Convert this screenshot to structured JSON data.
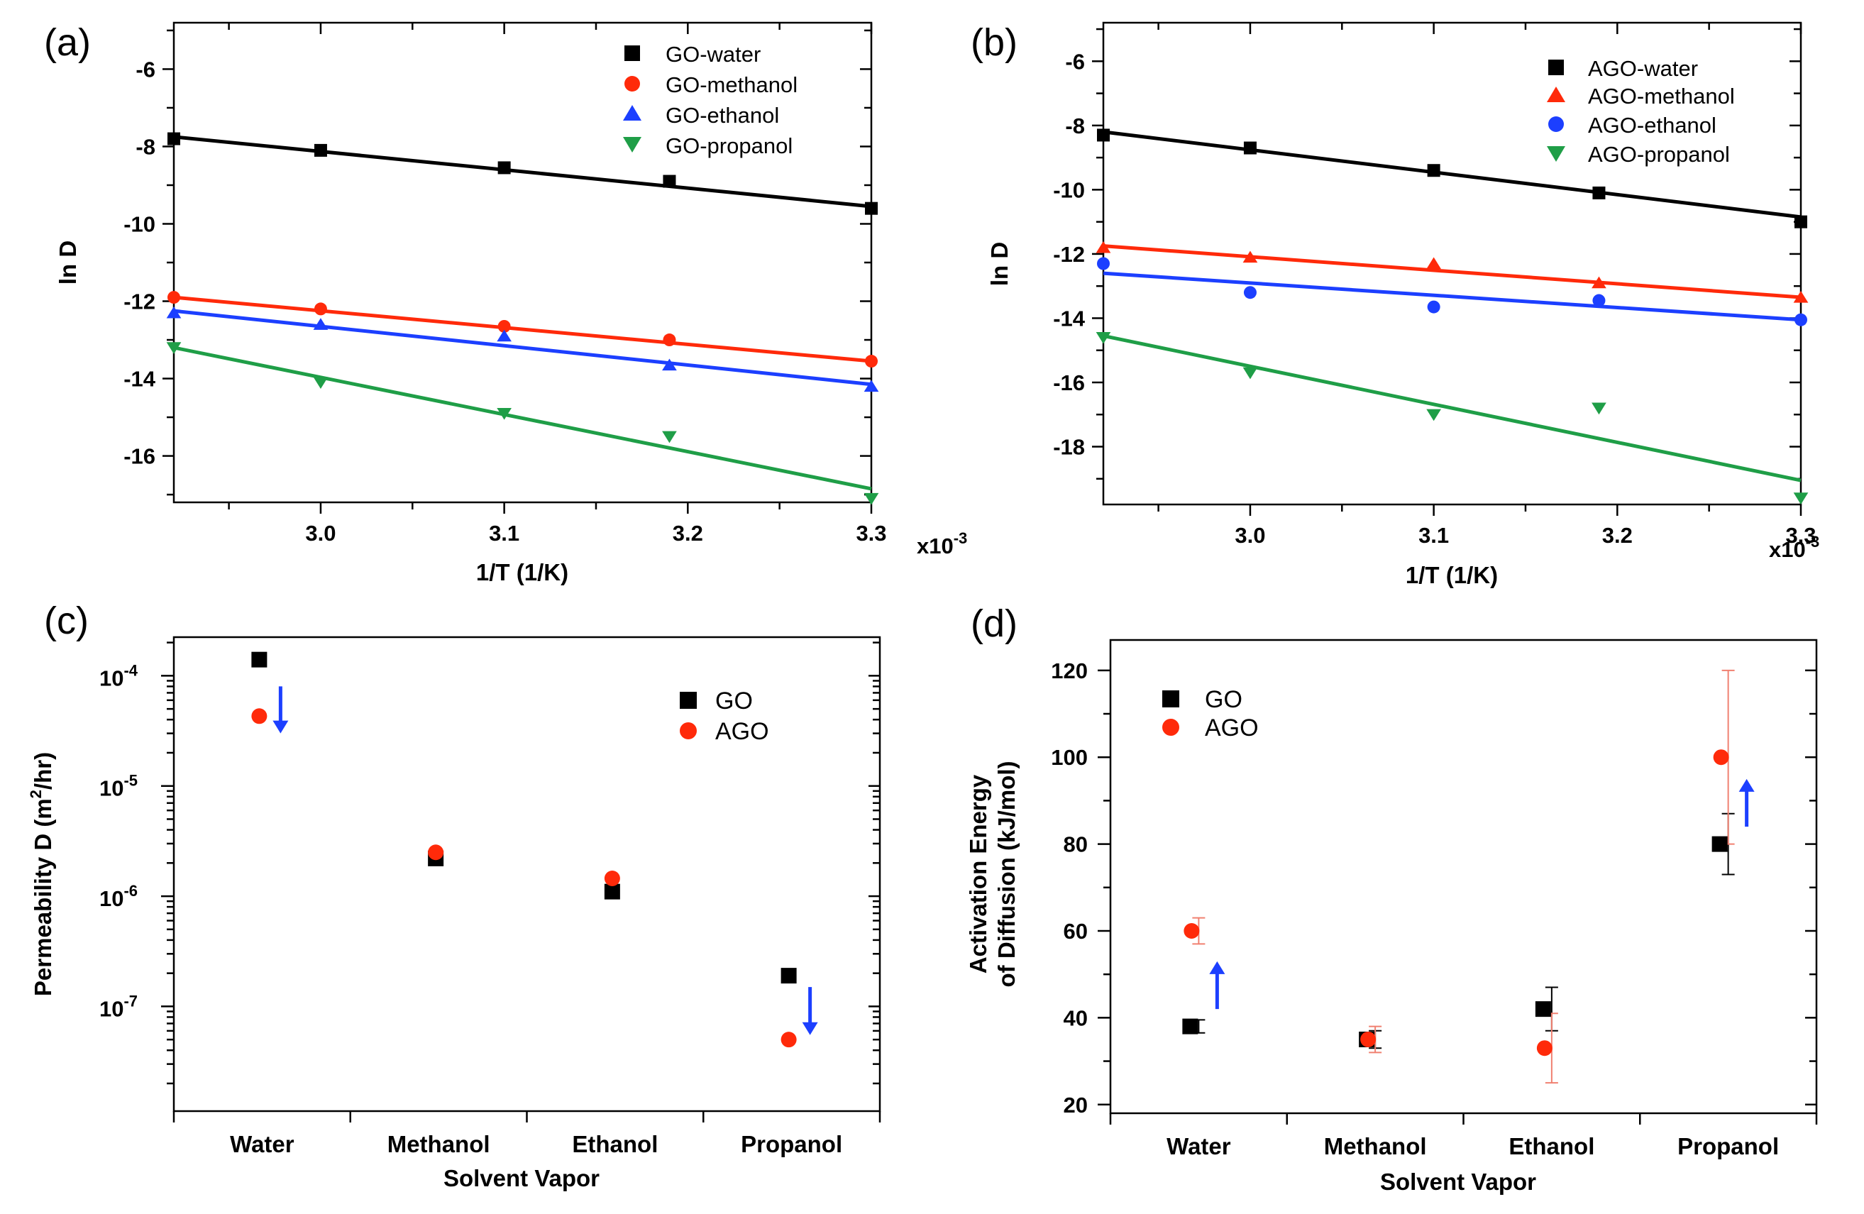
{
  "chart_data": [
    {
      "id": "a",
      "panel_label": "(a)",
      "type": "scatter",
      "xlabel": "1/T (1/K)",
      "ylabel": "ln D",
      "xlim": [
        2.92,
        3.3
      ],
      "ylim": [
        -17.2,
        -4.8
      ],
      "x_scale_label": "x10",
      "x_scale_exp": "-3",
      "x_ticks": [
        {
          "v": 3.0,
          "label": "3.0"
        },
        {
          "v": 3.1,
          "label": "3.1"
        },
        {
          "v": 3.2,
          "label": "3.2"
        },
        {
          "v": 3.3,
          "label": "3.3"
        }
      ],
      "y_ticks": [
        {
          "v": -6,
          "label": "-6"
        },
        {
          "v": -8,
          "label": "-8"
        },
        {
          "v": -10,
          "label": "-10"
        },
        {
          "v": -12,
          "label": "-12"
        },
        {
          "v": -14,
          "label": "-14"
        },
        {
          "v": -16,
          "label": "-16"
        }
      ],
      "legend_position": "top-right",
      "series": [
        {
          "name": "GO-water",
          "color": "#000000",
          "marker": "square",
          "x": [
            2.92,
            3.0,
            3.1,
            3.19,
            3.3
          ],
          "y": [
            -7.8,
            -8.1,
            -8.55,
            -8.9,
            -9.6
          ],
          "fit": [
            [
              2.92,
              -7.75
            ],
            [
              3.3,
              -9.55
            ]
          ]
        },
        {
          "name": "GO-methanol",
          "color": "#ff2a0a",
          "marker": "circle",
          "x": [
            2.92,
            3.0,
            3.1,
            3.19,
            3.3
          ],
          "y": [
            -11.9,
            -12.2,
            -12.65,
            -13.0,
            -13.55
          ],
          "fit": [
            [
              2.92,
              -11.9
            ],
            [
              3.3,
              -13.55
            ]
          ]
        },
        {
          "name": "GO-ethanol",
          "color": "#1c3fff",
          "marker": "triangle-up",
          "x": [
            2.92,
            3.0,
            3.1,
            3.19,
            3.3
          ],
          "y": [
            -12.3,
            -12.6,
            -12.9,
            -13.65,
            -14.2
          ],
          "fit": [
            [
              2.92,
              -12.25
            ],
            [
              3.3,
              -14.15
            ]
          ]
        },
        {
          "name": "GO-propanol",
          "color": "#1f9e47",
          "marker": "triangle-down",
          "x": [
            2.92,
            3.0,
            3.1,
            3.19,
            3.3
          ],
          "y": [
            -13.2,
            -14.1,
            -14.9,
            -15.5,
            -17.1
          ],
          "fit": [
            [
              2.92,
              -13.2
            ],
            [
              3.3,
              -16.85
            ]
          ]
        }
      ]
    },
    {
      "id": "b",
      "panel_label": "(b)",
      "type": "scatter",
      "xlabel": "1/T (1/K)",
      "ylabel": "ln D",
      "xlim": [
        2.92,
        3.3
      ],
      "ylim": [
        -19.8,
        -4.8
      ],
      "x_scale_label": "x10",
      "x_scale_exp": "-3",
      "x_ticks": [
        {
          "v": 3.0,
          "label": "3.0"
        },
        {
          "v": 3.1,
          "label": "3.1"
        },
        {
          "v": 3.2,
          "label": "3.2"
        },
        {
          "v": 3.3,
          "label": "3.3"
        }
      ],
      "y_ticks": [
        {
          "v": -6,
          "label": "-6"
        },
        {
          "v": -8,
          "label": "-8"
        },
        {
          "v": -10,
          "label": "-10"
        },
        {
          "v": -12,
          "label": "-12"
        },
        {
          "v": -14,
          "label": "-14"
        },
        {
          "v": -16,
          "label": "-16"
        },
        {
          "v": -18,
          "label": "-18"
        }
      ],
      "legend_position": "top-right",
      "series": [
        {
          "name": "AGO-water",
          "color": "#000000",
          "marker": "square",
          "x": [
            2.92,
            3.0,
            3.1,
            3.19,
            3.3
          ],
          "y": [
            -8.3,
            -8.7,
            -9.4,
            -10.1,
            -11.0
          ],
          "fit": [
            [
              2.92,
              -8.2
            ],
            [
              3.3,
              -10.85
            ]
          ]
        },
        {
          "name": "AGO-methanol",
          "color": "#ff2a0a",
          "marker": "triangle-up",
          "x": [
            2.92,
            3.0,
            3.1,
            3.19,
            3.3
          ],
          "y": [
            -11.8,
            -12.1,
            -12.3,
            -12.9,
            -13.35
          ],
          "fit": [
            [
              2.92,
              -11.75
            ],
            [
              3.3,
              -13.35
            ]
          ]
        },
        {
          "name": "AGO-ethanol",
          "color": "#1c3fff",
          "marker": "circle",
          "x": [
            2.92,
            3.0,
            3.1,
            3.19,
            3.3
          ],
          "y": [
            -12.3,
            -13.2,
            -13.65,
            -13.45,
            -14.05
          ],
          "fit": [
            [
              2.92,
              -12.6
            ],
            [
              3.3,
              -14.05
            ]
          ]
        },
        {
          "name": "AGO-propanol",
          "color": "#1f9e47",
          "marker": "triangle-down",
          "x": [
            2.92,
            3.0,
            3.1,
            3.19,
            3.3
          ],
          "y": [
            -14.6,
            -15.7,
            -17.0,
            -16.8,
            -19.6
          ],
          "fit": [
            [
              2.92,
              -14.55
            ],
            [
              3.3,
              -19.05
            ]
          ]
        }
      ]
    },
    {
      "id": "c",
      "panel_label": "(c)",
      "type": "scatter",
      "xlabel": "Solvent Vapor",
      "ylabel": "Permeability D (m²/hr)",
      "ylabel_parts": {
        "main": "Permeability D (m",
        "sup": "2",
        "tail": "/hr)"
      },
      "y_scale": "log",
      "ylim_log10": [
        -7.95,
        -3.65
      ],
      "categories": [
        "Water",
        "Methanol",
        "Ethanol",
        "Propanol"
      ],
      "y_ticks": [
        {
          "exp": -4,
          "base": "10",
          "sup": "-4"
        },
        {
          "exp": -5,
          "base": "10",
          "sup": "-5"
        },
        {
          "exp": -6,
          "base": "10",
          "sup": "-6"
        },
        {
          "exp": -7,
          "base": "10",
          "sup": "-7"
        }
      ],
      "legend_position": "top-right",
      "series": [
        {
          "name": "GO",
          "color": "#000000",
          "marker": "square",
          "values": [
            0.00014,
            2.2e-06,
            1.1e-06,
            1.9e-07
          ]
        },
        {
          "name": "AGO",
          "color": "#ff2a0a",
          "marker": "circle",
          "values": [
            4.3e-05,
            2.5e-06,
            1.45e-06,
            5e-08
          ]
        }
      ],
      "arrows": [
        {
          "category": "Water",
          "direction": "down",
          "from": 8e-05,
          "to": 3e-05,
          "color": "#1c3fff"
        },
        {
          "category": "Propanol",
          "direction": "down",
          "from": 1.5e-07,
          "to": 5.5e-08,
          "color": "#1c3fff"
        }
      ]
    },
    {
      "id": "d",
      "panel_label": "(d)",
      "type": "scatter",
      "xlabel": "Solvent Vapor",
      "ylabel": "Activation Energy",
      "ylabel_line2": "of Diffusion (kJ/mol)",
      "ylim": [
        18,
        127
      ],
      "categories": [
        "Water",
        "Methanol",
        "Ethanol",
        "Propanol"
      ],
      "y_ticks": [
        {
          "v": 20,
          "label": "20"
        },
        {
          "v": 40,
          "label": "40"
        },
        {
          "v": 60,
          "label": "60"
        },
        {
          "v": 80,
          "label": "80"
        },
        {
          "v": 100,
          "label": "100"
        },
        {
          "v": 120,
          "label": "120"
        }
      ],
      "legend_position": "top-left",
      "series": [
        {
          "name": "GO",
          "color": "#000000",
          "marker": "square",
          "values": [
            38,
            35,
            42,
            80
          ],
          "err": [
            1.5,
            2,
            5,
            7
          ]
        },
        {
          "name": "AGO",
          "color": "#ff2a0a",
          "marker": "circle",
          "values": [
            60,
            35,
            33,
            100
          ],
          "err": [
            3,
            3,
            8,
            20
          ]
        }
      ],
      "arrows": [
        {
          "category": "Water",
          "direction": "up",
          "from": 42,
          "to": 53,
          "color": "#1c3fff"
        },
        {
          "category": "Propanol",
          "direction": "up",
          "from": 84,
          "to": 95,
          "color": "#1c3fff"
        }
      ]
    }
  ]
}
